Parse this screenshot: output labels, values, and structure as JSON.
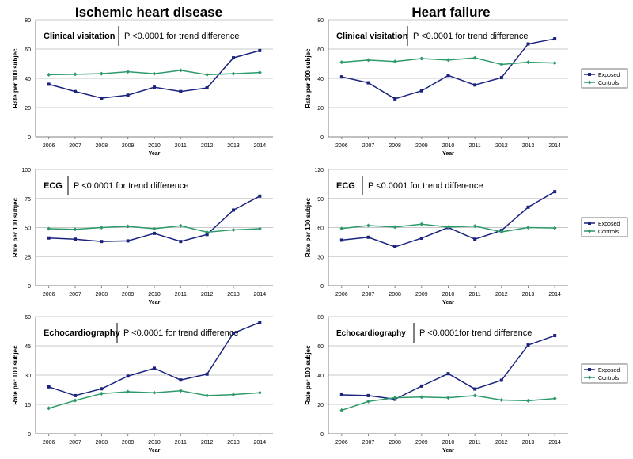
{
  "titles": {
    "left": "Ischemic heart disease",
    "right": "Heart failure"
  },
  "colors": {
    "exposed": "#1a237e",
    "controls": "#2e9a6b",
    "grid": "#c8c8c8",
    "axis": "#808080"
  },
  "legend": {
    "exposed": "Exposed",
    "controls": "Controls"
  },
  "chart_data": [
    {
      "id": "ihd-clinical",
      "type": "line",
      "title": "Clinical visitation",
      "annotation": "P <0.0001 for trend difference",
      "xlabel": "Year",
      "ylabel": "Rate per 100 subjec",
      "categories": [
        "2006",
        "2007",
        "2008",
        "2009",
        "2010",
        "2011",
        "2012",
        "2013",
        "2014"
      ],
      "ylim": [
        0,
        80
      ],
      "yticks": [
        0,
        20,
        40,
        60,
        80
      ],
      "series": [
        {
          "name": "Exposed",
          "values": [
            36,
            31,
            26.5,
            28.5,
            34,
            31,
            33.5,
            54,
            59
          ]
        },
        {
          "name": "Controls",
          "values": [
            42.5,
            42.8,
            43.2,
            44.5,
            43.2,
            45.5,
            42.5,
            43.2,
            44
          ]
        }
      ]
    },
    {
      "id": "hf-clinical",
      "type": "line",
      "title": "Clinical visitation",
      "annotation": "P <0.0001 for trend difference",
      "xlabel": "Year",
      "ylabel": "Rate per 100 subjec",
      "categories": [
        "2006",
        "2007",
        "2008",
        "2009",
        "2010",
        "2011",
        "2012",
        "2013",
        "2014"
      ],
      "ylim": [
        0,
        80
      ],
      "yticks": [
        0,
        20,
        40,
        60,
        80
      ],
      "series": [
        {
          "name": "Exposed",
          "values": [
            41,
            37,
            26,
            31.5,
            42,
            35.5,
            40.5,
            63.5,
            67
          ]
        },
        {
          "name": "Controls",
          "values": [
            51,
            52.5,
            51.5,
            53.5,
            52.5,
            54,
            49.5,
            51,
            50.5
          ]
        }
      ]
    },
    {
      "id": "ihd-ecg",
      "type": "line",
      "title": "ECG",
      "annotation": "P <0.0001 for trend difference",
      "xlabel": "Year",
      "ylabel": "Rate per 100 subjec",
      "categories": [
        "2006",
        "2007",
        "2008",
        "2009",
        "2010",
        "2011",
        "2012",
        "2013",
        "2014"
      ],
      "ylim": [
        0,
        100
      ],
      "yticks": [
        0,
        25,
        50,
        75,
        100
      ],
      "series": [
        {
          "name": "Exposed",
          "values": [
            41,
            40,
            38,
            38.5,
            45,
            38,
            44,
            65,
            77
          ]
        },
        {
          "name": "Controls",
          "values": [
            49,
            48.5,
            50,
            51,
            49,
            51.5,
            46,
            48,
            49
          ]
        }
      ]
    },
    {
      "id": "hf-ecg",
      "type": "line",
      "title": "ECG",
      "annotation": "P <0.0001 for trend difference",
      "xlabel": "Year",
      "ylabel": "Rate per 100 subjec",
      "categories": [
        "2006",
        "2007",
        "2008",
        "2009",
        "2010",
        "2011",
        "2012",
        "2013",
        "2014"
      ],
      "ylim": [
        0,
        120
      ],
      "yticks": [
        0,
        30,
        60,
        90,
        120
      ],
      "series": [
        {
          "name": "Exposed",
          "values": [
            47,
            50,
            40,
            49,
            60,
            48,
            57,
            81,
            97
          ]
        },
        {
          "name": "Controls",
          "values": [
            59,
            62,
            60.5,
            63.5,
            60.5,
            61.5,
            55.5,
            60,
            59.5
          ]
        }
      ]
    },
    {
      "id": "ihd-echo",
      "type": "line",
      "title": "Echocardiography",
      "annotation": "P <0.0001 for trend difference",
      "xlabel": "Year",
      "ylabel": "Rate per 100 subjec",
      "categories": [
        "2006",
        "2007",
        "2008",
        "2009",
        "2010",
        "2011",
        "2012",
        "2013",
        "2014"
      ],
      "ylim": [
        0,
        60
      ],
      "yticks": [
        0,
        15,
        30,
        45,
        60
      ],
      "series": [
        {
          "name": "Exposed",
          "values": [
            24,
            19.5,
            23,
            29.5,
            33.5,
            27.5,
            30.5,
            51.5,
            57
          ]
        },
        {
          "name": "Controls",
          "values": [
            13,
            17,
            20.5,
            21.5,
            21,
            22,
            19.5,
            20,
            21
          ]
        }
      ]
    },
    {
      "id": "hf-echo",
      "type": "line",
      "title": "Echocardiography",
      "annotation": "P <0.0001for trend difference",
      "xlabel": "Year",
      "ylabel": "Rate per 100 subjec",
      "categories": [
        "2006",
        "2007",
        "2008",
        "2009",
        "2010",
        "2011",
        "2012",
        "2013",
        "2014"
      ],
      "ylim": [
        0,
        80
      ],
      "yticks": [
        0,
        20,
        40,
        60,
        80
      ],
      "series": [
        {
          "name": "Exposed",
          "values": [
            26.5,
            26,
            23.5,
            32.5,
            41,
            30.5,
            36.5,
            60.5,
            67
          ]
        },
        {
          "name": "Controls",
          "values": [
            16,
            22,
            24.5,
            25,
            24.5,
            26,
            23,
            22.5,
            24
          ]
        }
      ]
    }
  ]
}
